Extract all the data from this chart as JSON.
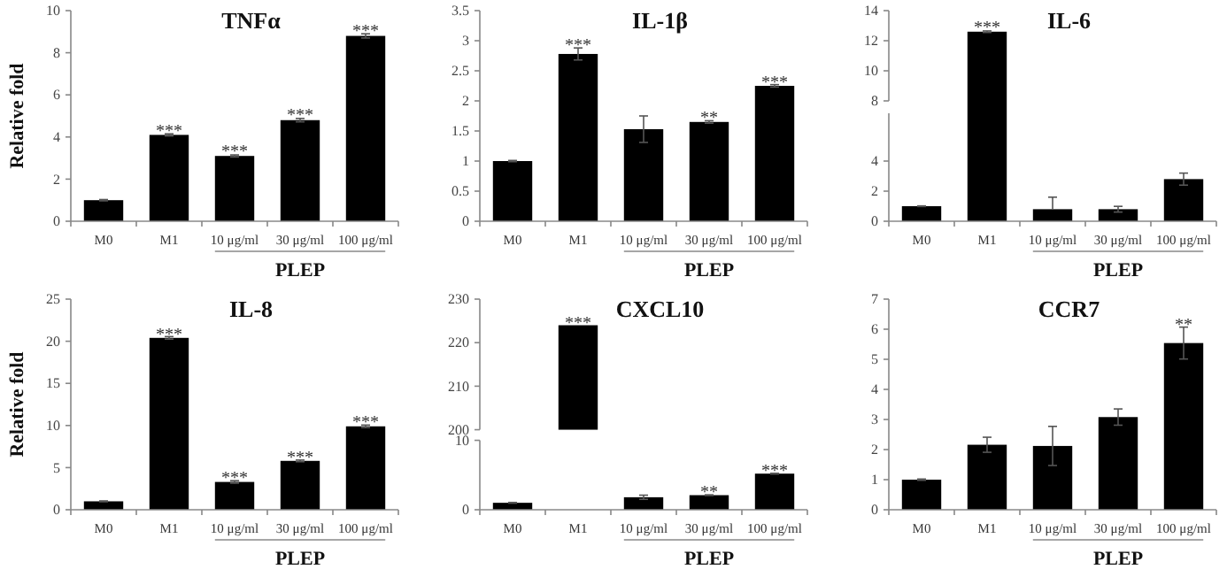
{
  "chart_data": [
    {
      "type": "bar",
      "title": "TNFα",
      "ylabel": "Relative fold",
      "xlabel": "PLEP",
      "categories": [
        "M0",
        "M1",
        "10 μg/ml",
        "30 μg/ml",
        "100 μg/ml"
      ],
      "values": [
        1,
        4.1,
        3.1,
        4.8,
        8.8
      ],
      "errors": [
        0.03,
        0.05,
        0.05,
        0.08,
        0.1
      ],
      "color": "#000000",
      "ylim": [
        0,
        10
      ],
      "yticks": [
        0,
        2,
        4,
        6,
        8,
        10
      ],
      "annotations": [
        {
          "text": "***",
          "x": "M1",
          "y": 4.15
        },
        {
          "text": "***",
          "x": "10 μg/ml",
          "y": 3.2
        },
        {
          "text": "***",
          "x": "30 μg/ml",
          "y": 4.9
        },
        {
          "text": "***",
          "x": "100 μg/ml",
          "y": 8.9
        }
      ]
    },
    {
      "type": "bar",
      "title": "IL-1β",
      "xlabel": "PLEP",
      "categories": [
        "M0",
        "M1",
        "10 μg/ml",
        "30 μg/ml",
        "100 μg/ml"
      ],
      "values": [
        1,
        2.78,
        1.53,
        1.65,
        2.25
      ],
      "errors": [
        0.01,
        0.1,
        0.22,
        0.02,
        0.02
      ],
      "color": "#000000",
      "ylim": [
        0,
        3.5
      ],
      "yticks": [
        0,
        0.5,
        1,
        1.5,
        2,
        2.5,
        3,
        3.5
      ],
      "annotations": [
        {
          "text": "***",
          "x": "M1",
          "y": 2.88
        },
        {
          "text": "**",
          "x": "30 μg/ml",
          "y": 1.67
        },
        {
          "text": "***",
          "x": "100 μg/ml",
          "y": 2.27
        }
      ]
    },
    {
      "type": "bar",
      "title": "IL-6",
      "xlabel": "PLEP",
      "categories": [
        "M0",
        "M1",
        "10 μg/ml",
        "30 μg/ml",
        "100 μg/ml"
      ],
      "values": [
        1,
        12.6,
        0.8,
        0.8,
        2.8
      ],
      "errors": [
        0.02,
        0.05,
        [
          0.8,
          1.6
        ],
        0.19,
        0.4
      ],
      "color": "#000000",
      "ylim": [
        0,
        14
      ],
      "yticks": [
        0,
        2,
        4,
        8,
        10,
        12,
        14
      ],
      "annotations": [
        {
          "text": "***",
          "x": "M1",
          "y": 12.7
        }
      ]
    },
    {
      "type": "bar",
      "title": "IL-8",
      "ylabel": "Relative fold",
      "xlabel": "PLEP",
      "categories": [
        "M0",
        "M1",
        "10 μg/ml",
        "30 μg/ml",
        "100 μg/ml"
      ],
      "values": [
        1,
        20.4,
        3.3,
        5.8,
        9.9
      ],
      "errors": [
        0.05,
        0.15,
        0.15,
        0.1,
        0.15
      ],
      "color": "#000000",
      "ylim": [
        0,
        25
      ],
      "yticks": [
        0,
        5,
        10,
        15,
        20,
        25
      ],
      "annotations": [
        {
          "text": "***",
          "x": "M1",
          "y": 20.5
        },
        {
          "text": "***",
          "x": "10 μg/ml",
          "y": 3.45
        },
        {
          "text": "***",
          "x": "30 μg/ml",
          "y": 5.9
        },
        {
          "text": "***",
          "x": "100 μg/ml",
          "y": 10.05
        }
      ]
    },
    {
      "type": "bar",
      "title": "CXCL10",
      "tick_labels": "y",
      "categories": [
        null,
        null,
        null,
        null,
        null
      ],
      "values": [
        null,
        224,
        null,
        null,
        null
      ],
      "color": "#000000",
      "ylim": [
        200,
        230
      ],
      "yticks": [
        200,
        210,
        220,
        230
      ],
      "annotations": [
        "***"
      ]
    },
    {
      "type": "bar",
      "xlabel": "PLEP",
      "categories": [
        "M0",
        "M1",
        "10 μg/ml",
        "30 μg/ml",
        "100 μg/ml"
      ],
      "values": [
        1,
        null,
        1.8,
        2.1,
        5.2
      ],
      "errors": [
        0.05,
        null,
        0.3,
        0.05,
        0.05
      ],
      "color": "#000000",
      "ylim": [
        0,
        10
      ],
      "yticks": [
        0,
        10
      ],
      "annotations": [
        {
          "text": "**",
          "x": "30 μg/ml",
          "y": 2.15
        },
        {
          "text": "***",
          "x": "100 μg/ml",
          "y": 5.25
        }
      ]
    },
    {
      "type": "bar",
      "title": "CCR7",
      "xlabel": "PLEP",
      "categories": [
        "M0",
        "M1",
        "10 μg/ml",
        "30 μg/ml",
        "100 μg/ml"
      ],
      "values": [
        1,
        2.16,
        2.12,
        3.08,
        5.54
      ],
      "errors": [
        0.02,
        0.25,
        0.65,
        0.27,
        0.53
      ],
      "color": "#000000",
      "ylim": [
        0,
        7
      ],
      "yticks": [
        0,
        1,
        2,
        3,
        4,
        5,
        6,
        7
      ],
      "annotations": [
        {
          "text": "**",
          "x": "100 μg/ml",
          "y": 6.07
        }
      ]
    }
  ]
}
